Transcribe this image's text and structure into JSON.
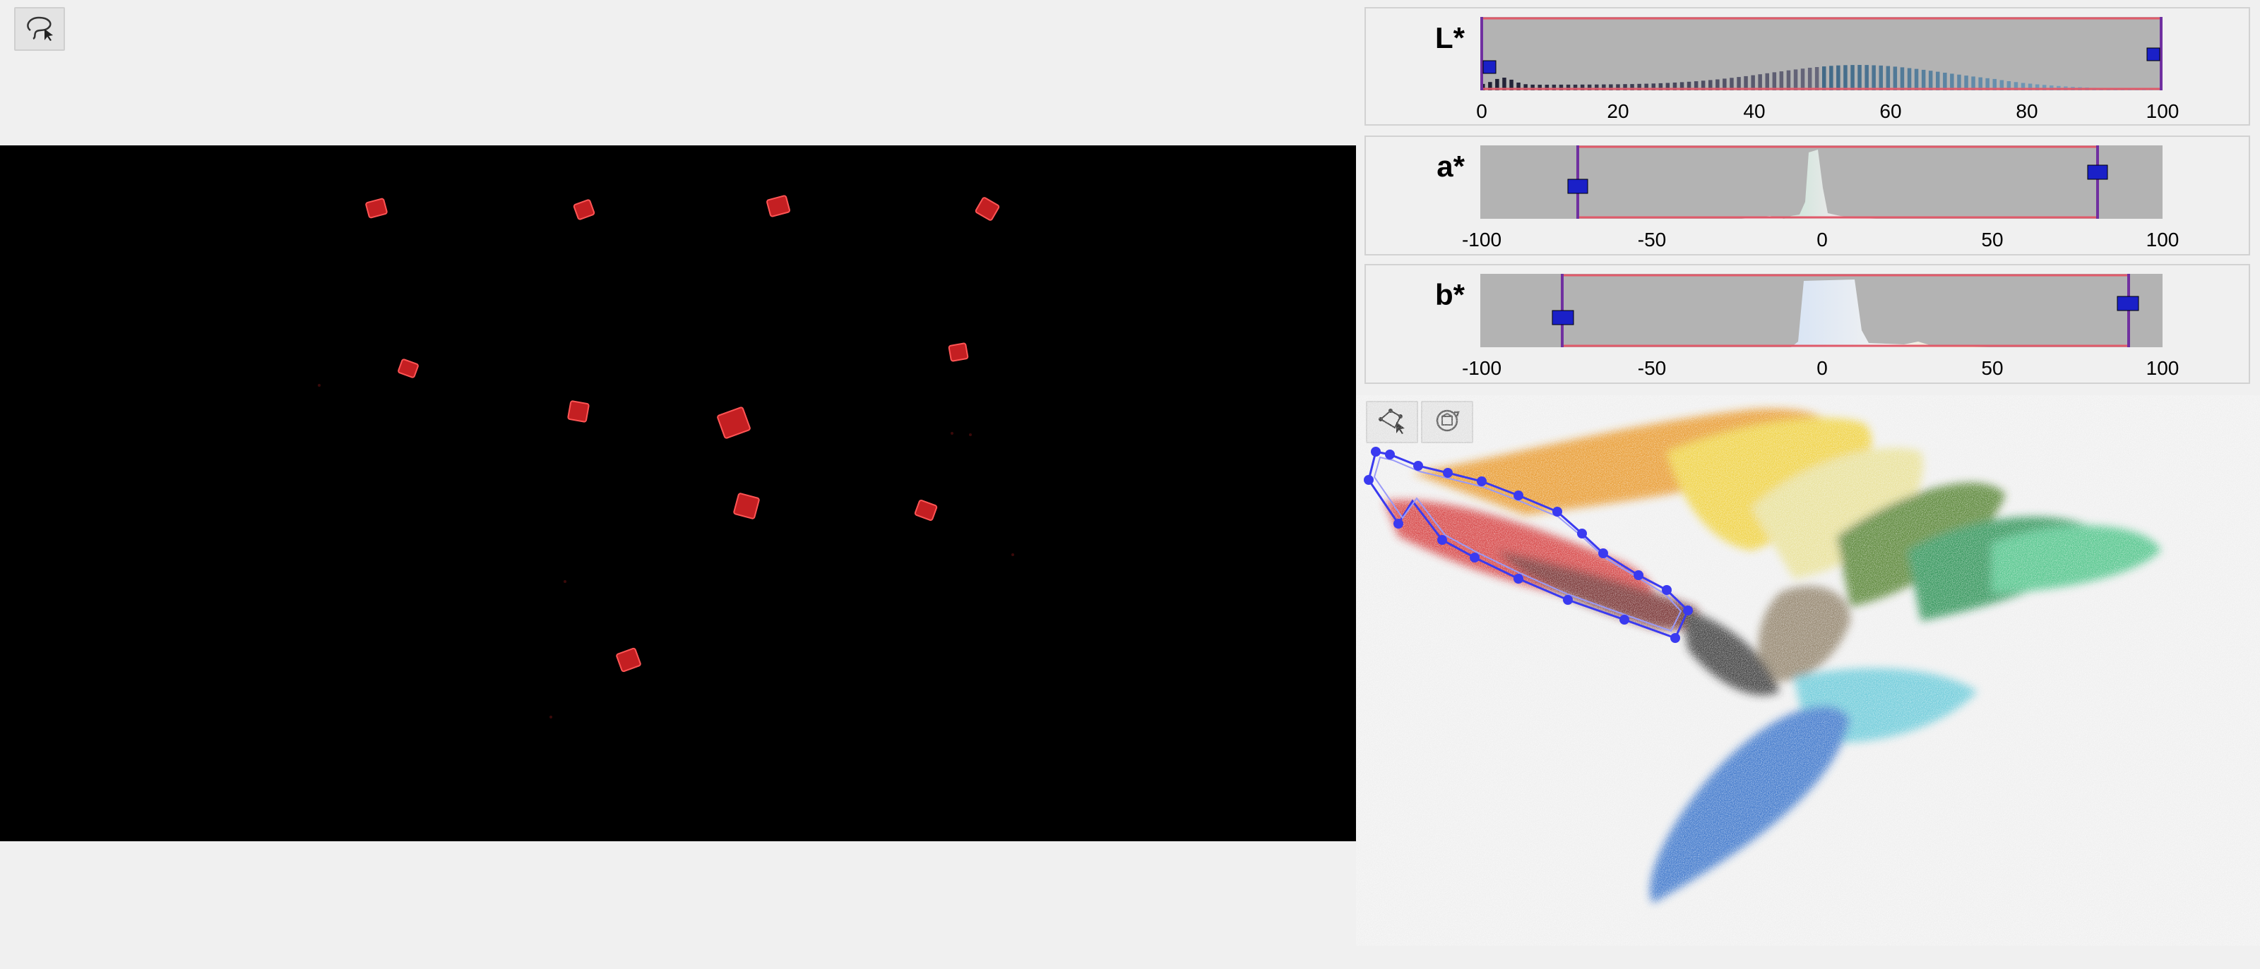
{
  "toolbar": {
    "lasso_tool": {
      "icon": "freehand-lasso-icon"
    }
  },
  "histograms": {
    "L": {
      "label": "L*",
      "ticks": [
        "0",
        "20",
        "40",
        "60",
        "80",
        "100"
      ],
      "range": [
        0,
        100
      ],
      "selection": [
        0,
        100
      ],
      "bar_color": "#000000"
    },
    "a": {
      "label": "a*",
      "ticks": [
        "-100",
        "-50",
        "0",
        "50",
        "100"
      ],
      "range": [
        -100,
        100
      ],
      "selection": [
        -71,
        80
      ]
    },
    "b": {
      "label": "b*",
      "ticks": [
        "-100",
        "-50",
        "0",
        "50",
        "100"
      ],
      "range": [
        -100,
        100
      ],
      "selection": [
        -76,
        94
      ]
    }
  },
  "point_cloud_tools": {
    "polygon_tool": {
      "icon": "polygon-select-icon"
    },
    "rotate_tool": {
      "icon": "rotate-view-icon"
    }
  },
  "colors": {
    "histogram_bg": "#b3b3b3",
    "selection_box": "#e05a6a",
    "handle_line": "#7030a0",
    "handle": "#1a20c8",
    "polygon": "#3a3af0",
    "masked_object": "#d42a2a"
  }
}
